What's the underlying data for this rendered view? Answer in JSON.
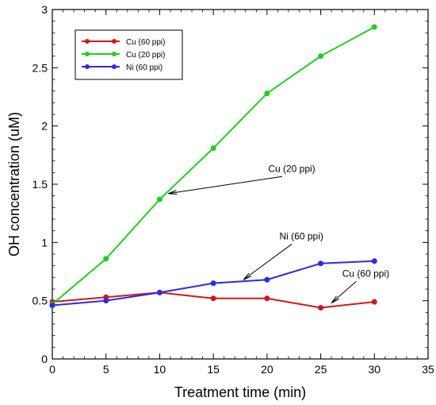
{
  "chart_data": {
    "type": "line",
    "xlabel": "Treatment time (min)",
    "ylabel": "OH concentration (uM)",
    "xlim": [
      0,
      35
    ],
    "ylim": [
      0,
      3
    ],
    "xticks": [
      0,
      5,
      10,
      15,
      20,
      25,
      30,
      35
    ],
    "xtick_labels": [
      "0",
      "5",
      "10",
      "15",
      "20",
      "25",
      "30",
      "35"
    ],
    "yticks": [
      0,
      0.5,
      1,
      1.5,
      2,
      2.5,
      3
    ],
    "ytick_labels": [
      "0",
      "0.5",
      "1",
      "1.5",
      "2",
      "2.5",
      "3"
    ],
    "grid": false,
    "legend_position": "top-left",
    "series": [
      {
        "name": "Cu (60 ppi)",
        "color": "#cc1a1a",
        "x": [
          0,
          5,
          10,
          15,
          20,
          25,
          30
        ],
        "y": [
          0.49,
          0.53,
          0.57,
          0.52,
          0.52,
          0.44,
          0.49
        ]
      },
      {
        "name": "Cu (20 ppi)",
        "color": "#22cc22",
        "x": [
          0,
          5,
          10,
          15,
          20,
          25,
          30
        ],
        "y": [
          0.47,
          0.86,
          1.37,
          1.81,
          2.28,
          2.6,
          2.85
        ]
      },
      {
        "name": "Ni (60 ppi)",
        "color": "#2a2ae6",
        "x": [
          0,
          5,
          10,
          15,
          20,
          25,
          30
        ],
        "y": [
          0.46,
          0.5,
          0.57,
          0.65,
          0.68,
          0.82,
          0.84
        ]
      }
    ],
    "annotations": [
      {
        "text": "Cu (20 ppi)",
        "text_x": 22.3,
        "text_y": 1.58,
        "arrow_x": 10.8,
        "arrow_y": 1.42
      },
      {
        "text": "Ni (60 ppi)",
        "text_x": 23.2,
        "text_y": 1.0,
        "arrow_x": 17.8,
        "arrow_y": 0.68
      },
      {
        "text": "Cu (60 ppi)",
        "text_x": 29.2,
        "text_y": 0.68,
        "arrow_x": 26.0,
        "arrow_y": 0.48
      }
    ]
  }
}
